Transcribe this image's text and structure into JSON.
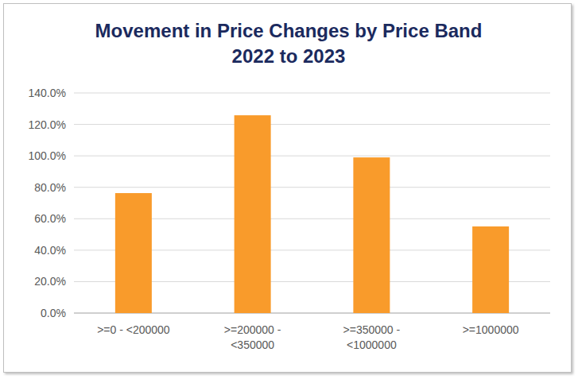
{
  "chart_data": {
    "type": "bar",
    "title": "Movement in Price Changes by Price Band\n2022 to 2023",
    "categories": [
      ">=0 - <200000",
      ">=200000 - <350000",
      ">=350000 - <1000000",
      ">=1000000"
    ],
    "values": [
      76.3,
      125.8,
      99.0,
      55.1
    ],
    "color": "#f99b2b",
    "ylim": [
      0,
      140
    ],
    "yticks": [
      {
        "value": 0,
        "label": "0.0%"
      },
      {
        "value": 20,
        "label": "20.0%"
      },
      {
        "value": 40,
        "label": "40.0%"
      },
      {
        "value": 60,
        "label": "60.0%"
      },
      {
        "value": 80,
        "label": "80.0%"
      },
      {
        "value": 100,
        "label": "100.0%"
      },
      {
        "value": 120,
        "label": "120.0%"
      },
      {
        "value": 140,
        "label": "140.0%"
      }
    ],
    "grid": true
  }
}
